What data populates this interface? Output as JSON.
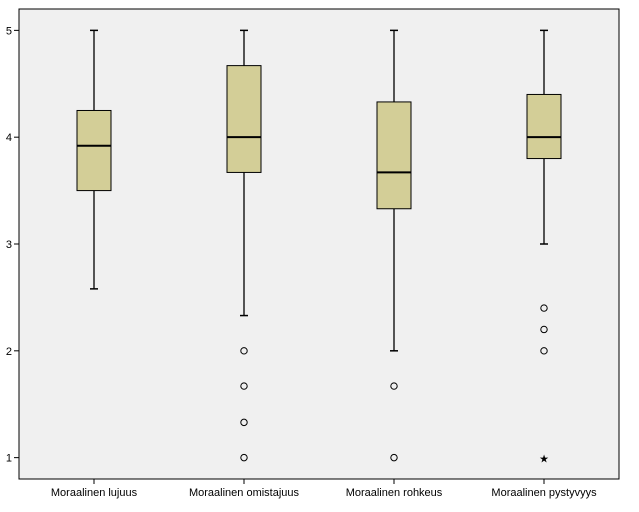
{
  "chart_data": {
    "type": "boxplot",
    "title": "",
    "xlabel": "",
    "ylabel": "",
    "ylim": [
      0.8,
      5.2
    ],
    "yticks": [
      1,
      2,
      3,
      4,
      5
    ],
    "grid": false,
    "plot_background": "#f0f0f0",
    "box_fill": "#d3ce97",
    "categories": [
      "Moraalinen lujuus",
      "Moraalinen omistajuus",
      "Moraalinen rohkeus",
      "Moraalinen pystyvyys"
    ],
    "boxes": [
      {
        "category": "Moraalinen lujuus",
        "whisker_low": 2.58,
        "q1": 3.5,
        "median": 3.92,
        "q3": 4.25,
        "whisker_high": 5.0,
        "outliers": [],
        "extremes": []
      },
      {
        "category": "Moraalinen omistajuus",
        "whisker_low": 2.33,
        "q1": 3.67,
        "median": 4.0,
        "q3": 4.67,
        "whisker_high": 5.0,
        "outliers": [
          2.0,
          1.67,
          1.33,
          1.0
        ],
        "extremes": []
      },
      {
        "category": "Moraalinen rohkeus",
        "whisker_low": 2.0,
        "q1": 3.33,
        "median": 3.67,
        "q3": 4.33,
        "whisker_high": 5.0,
        "outliers": [
          1.67,
          1.0
        ],
        "extremes": []
      },
      {
        "category": "Moraalinen pystyvyys",
        "whisker_low": 3.0,
        "q1": 3.8,
        "median": 4.0,
        "q3": 4.4,
        "whisker_high": 5.0,
        "outliers": [
          2.4,
          2.2,
          2.0
        ],
        "extremes": [
          1.0
        ]
      }
    ]
  }
}
